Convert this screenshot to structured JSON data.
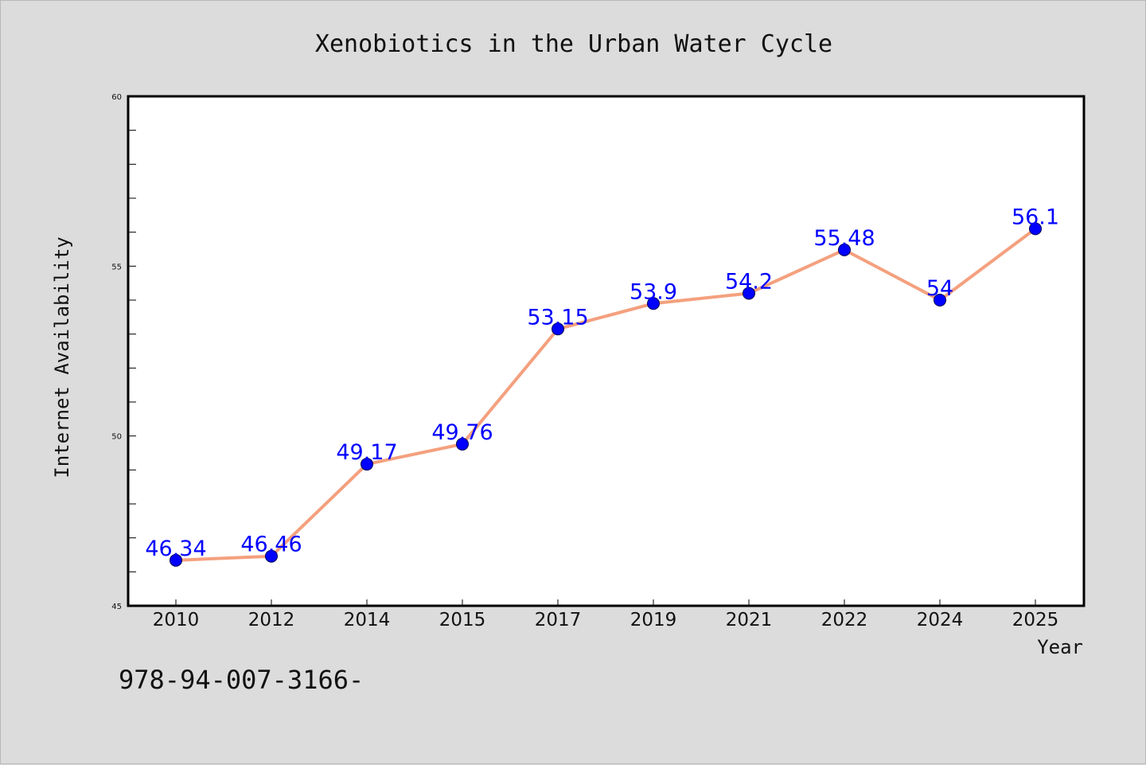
{
  "chart_data": {
    "type": "line",
    "title": "Xenobiotics in the Urban Water Cycle",
    "xlabel": "Year",
    "ylabel": "Internet Availability",
    "categories": [
      "2010",
      "2012",
      "2014",
      "2015",
      "2017",
      "2019",
      "2021",
      "2022",
      "2024",
      "2025"
    ],
    "series": [
      {
        "values": [
          46.34,
          46.46,
          49.17,
          49.76,
          53.15,
          53.9,
          54.2,
          55.48,
          54,
          56.1
        ],
        "data_labels": [
          "46.34",
          "46.46",
          "49.17",
          "49.76",
          "53.15",
          "53.9",
          "54.2",
          "55.48",
          "54",
          "56.1"
        ],
        "line_color": "#f4a07e",
        "marker_color": "#0000ff"
      }
    ],
    "ylim": [
      45,
      60
    ],
    "yticks": [
      "45",
      "50",
      "55",
      "60"
    ],
    "grid": false,
    "legend": "none"
  },
  "footer_text": "978-94-007-3166-"
}
